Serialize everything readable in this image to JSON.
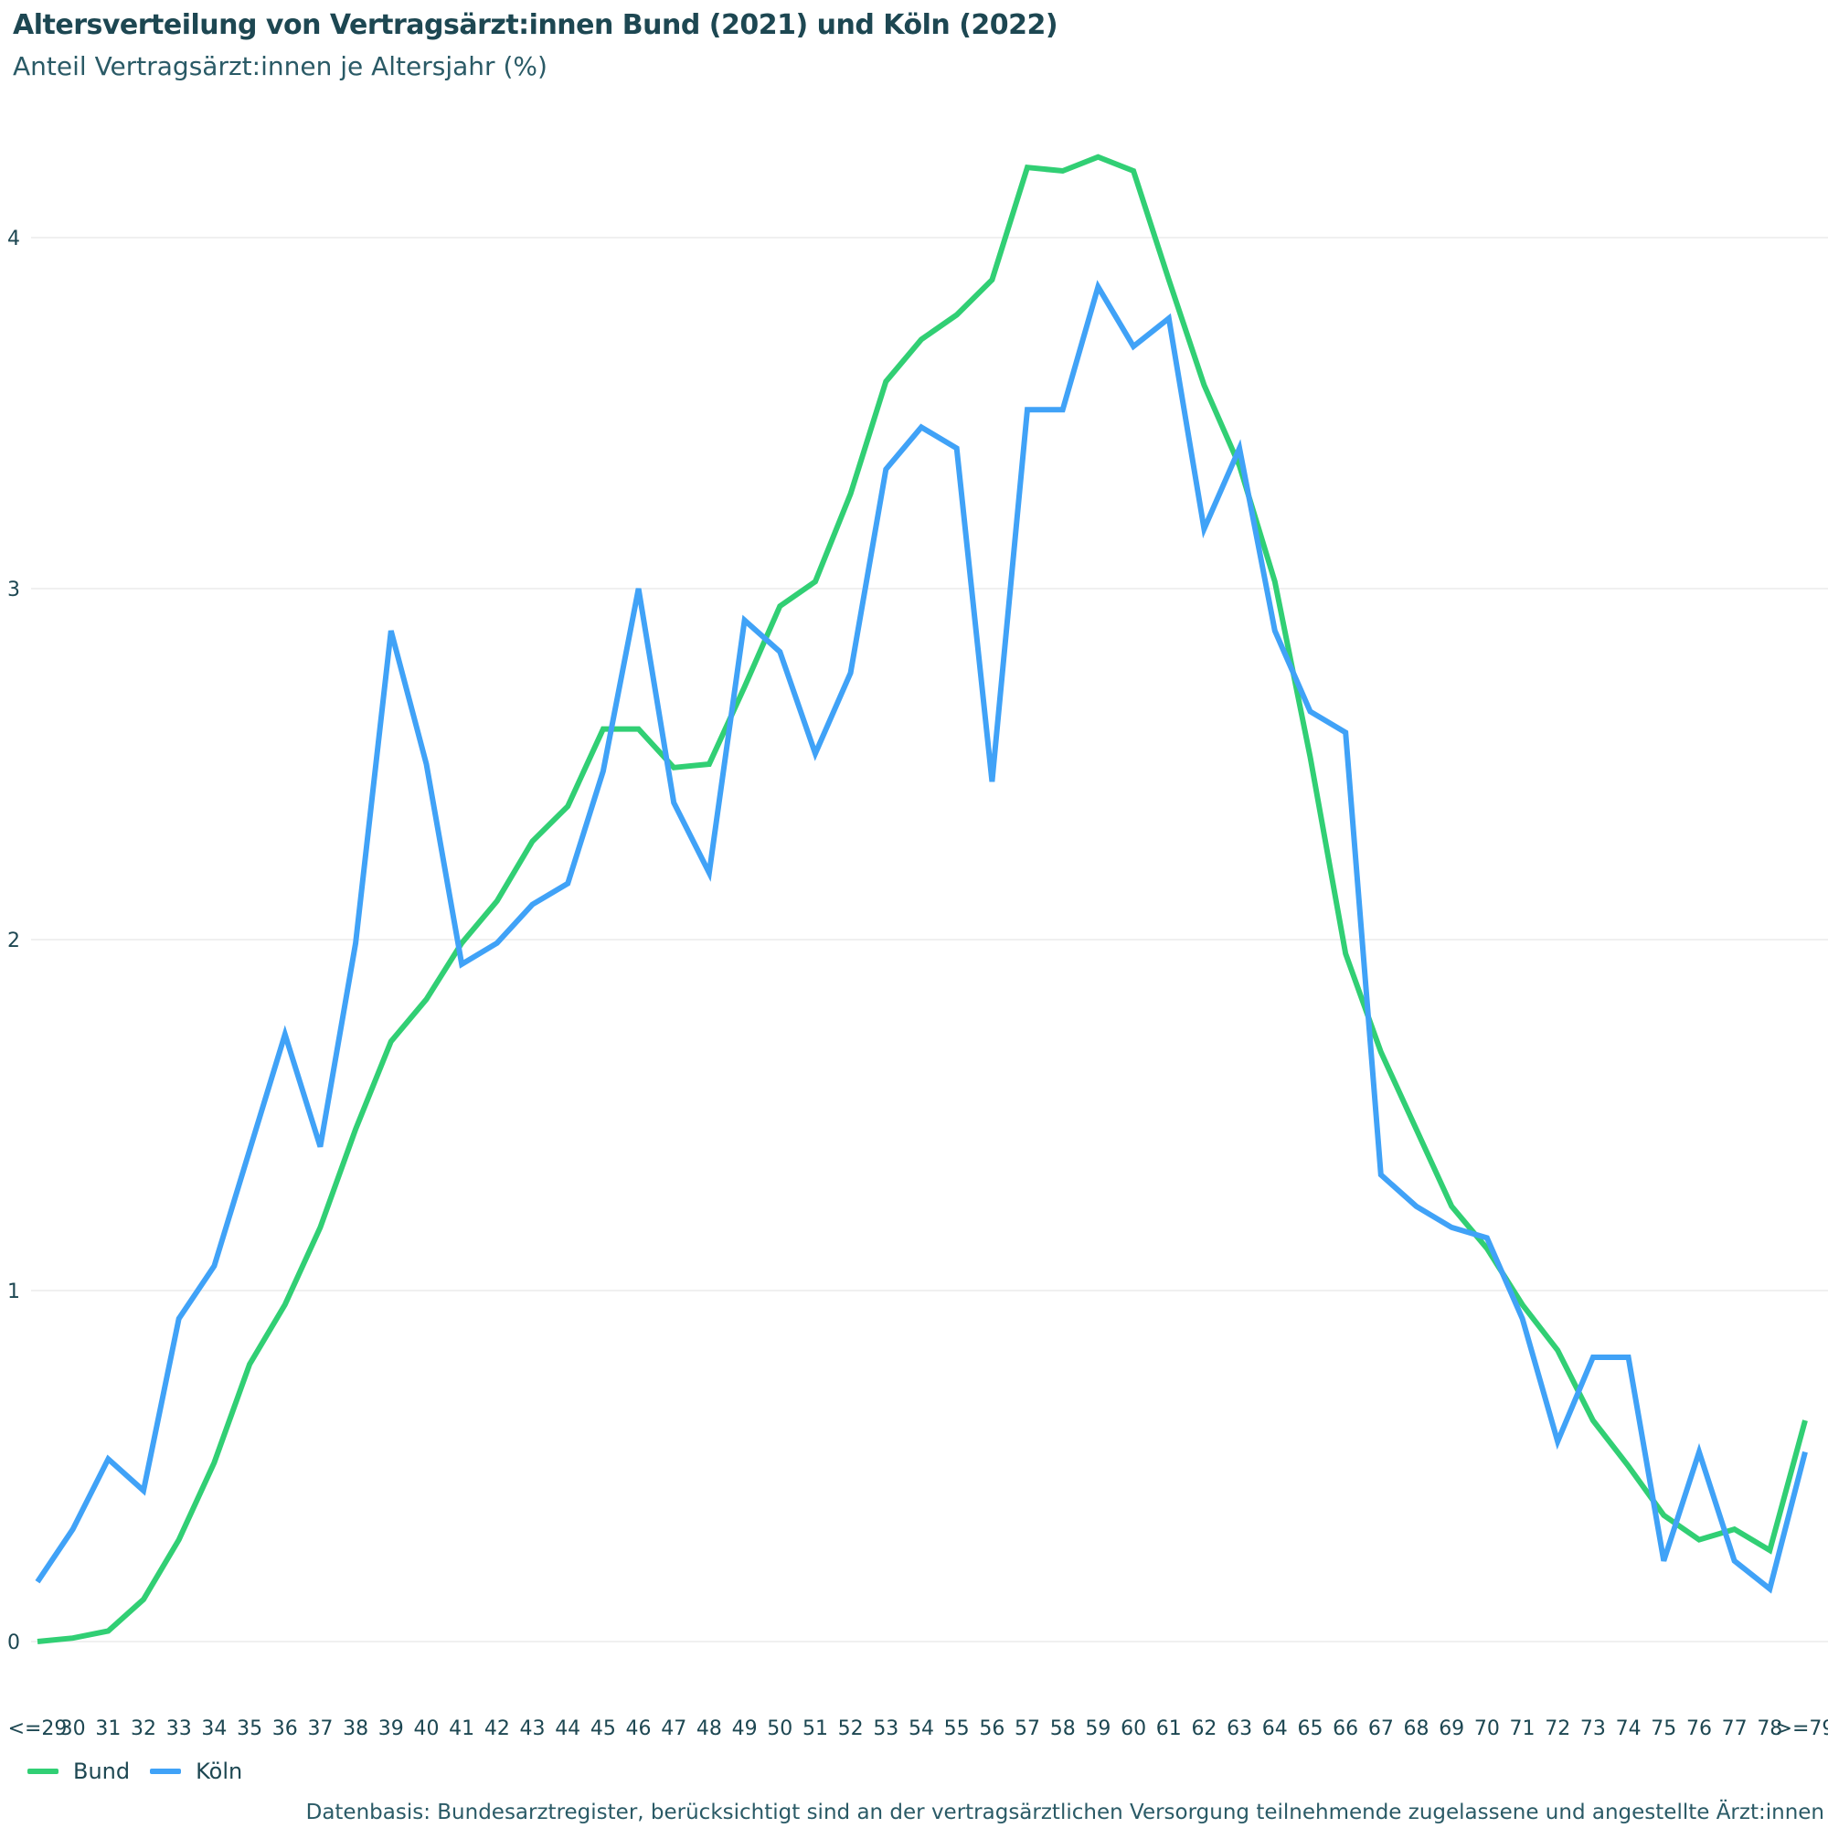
{
  "chart_data": {
    "type": "line",
    "title": "Altersverteilung von Vertragsärzt:innen Bund (2021) und Köln (2022)",
    "subtitle": "Anteil Vertragsärzt:innen je Altersjahr (%)",
    "xlabel": "",
    "ylabel": "",
    "ylim": [
      0,
      4.3
    ],
    "yticks": [
      0,
      1,
      2,
      3,
      4
    ],
    "grid": true,
    "legend_position": "bottom-left",
    "categories": [
      "<=29",
      "30",
      "31",
      "32",
      "33",
      "34",
      "35",
      "36",
      "37",
      "38",
      "39",
      "40",
      "41",
      "42",
      "43",
      "44",
      "45",
      "46",
      "47",
      "48",
      "49",
      "50",
      "51",
      "52",
      "53",
      "54",
      "55",
      "56",
      "57",
      "58",
      "59",
      "60",
      "61",
      "62",
      "63",
      "64",
      "65",
      "66",
      "67",
      "68",
      "69",
      "70",
      "71",
      "72",
      "73",
      "74",
      "75",
      "76",
      "77",
      "78",
      ">=79"
    ],
    "series": [
      {
        "name": "Bund",
        "color": "#31cf74",
        "values": [
          0.0,
          0.01,
          0.03,
          0.12,
          0.29,
          0.51,
          0.79,
          0.96,
          1.18,
          1.46,
          1.71,
          1.83,
          1.99,
          2.11,
          2.28,
          2.38,
          2.6,
          2.6,
          2.49,
          2.5,
          2.72,
          2.95,
          3.02,
          3.27,
          3.59,
          3.71,
          3.78,
          3.88,
          4.2,
          4.19,
          4.23,
          4.19,
          3.88,
          3.58,
          3.35,
          3.02,
          2.52,
          1.96,
          1.68,
          1.46,
          1.24,
          1.12,
          0.96,
          0.83,
          0.63,
          0.5,
          0.36,
          0.29,
          0.32,
          0.26,
          0.63
        ]
      },
      {
        "name": "Köln",
        "color": "#40a2f7",
        "values": [
          0.17,
          0.32,
          0.52,
          0.43,
          0.92,
          1.07,
          1.4,
          1.73,
          1.41,
          1.99,
          2.88,
          2.5,
          1.93,
          1.99,
          2.1,
          2.16,
          2.48,
          3.0,
          2.39,
          2.19,
          2.91,
          2.82,
          2.53,
          2.76,
          3.34,
          3.46,
          3.4,
          2.45,
          3.51,
          3.51,
          3.86,
          3.69,
          3.77,
          3.17,
          3.4,
          2.88,
          2.65,
          2.59,
          1.33,
          1.24,
          1.18,
          1.15,
          0.92,
          0.57,
          0.81,
          0.81,
          0.23,
          0.54,
          0.23,
          0.15,
          0.54
        ]
      }
    ],
    "source": "Datenbasis: Bundesarztregister, berücksichtigt sind an der vertragsärztlichen Versorgung teilnehmende zugelassene und angestellte Ärzt:innen"
  }
}
